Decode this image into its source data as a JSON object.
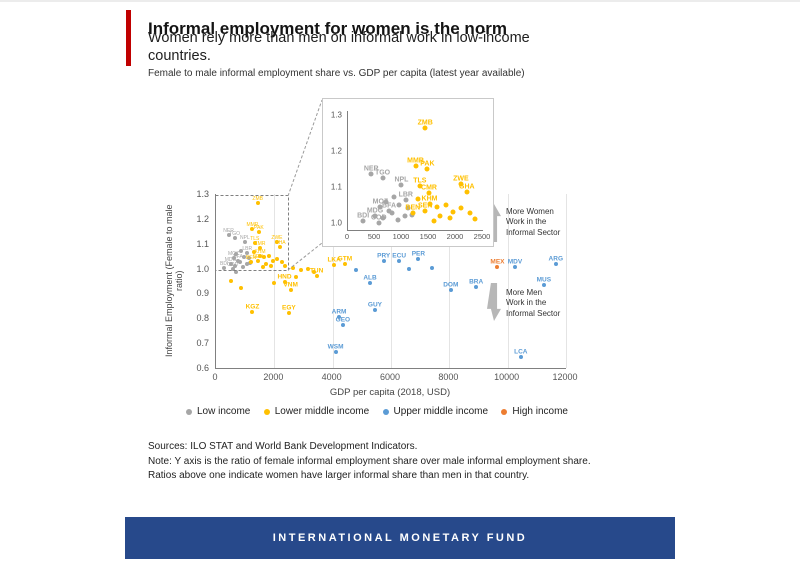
{
  "header": {
    "title": "Informal employment for women is the norm",
    "subtitle": "Women rely more than men on informal work in low-income countries.",
    "caption": "Female to male informal employment share vs. GDP per capita (latest year available)"
  },
  "annotations": {
    "more_women": "More Women\nWork in the\nInformal Sector",
    "more_men": "More Men\nWork in the\nInformal Sector"
  },
  "footer": {
    "sources": "Sources: ILO STAT and World Bank Development Indicators.",
    "note": "Note: Y axis is the ratio of female informal employment share over male informal employment share. Ratios above one indicate women have larger informal share than men in that country.",
    "imf": "INTERNATIONAL MONETARY FUND"
  },
  "colors": {
    "accent_red": "#C00000",
    "imf_navy": "#27498B",
    "low_income": "#A6A6A6",
    "lower_middle_income": "#FFC000",
    "upper_middle_income": "#5B9BD5",
    "high_income": "#ED7D31"
  },
  "chart_data": {
    "type": "scatter",
    "title": "Female to male informal employment share vs. GDP per capita (latest year available)",
    "xlabel": "GDP per capita (2018, USD)",
    "ylabel": "Informal Employment (Female to male ratio)",
    "xlim": [
      0,
      12000
    ],
    "ylim": [
      0.6,
      1.3
    ],
    "x_ticks": [
      0,
      2000,
      4000,
      6000,
      8000,
      10000,
      12000
    ],
    "y_ticks": [
      0.6,
      0.7,
      0.8,
      0.9,
      1.0,
      1.1,
      1.2,
      1.3
    ],
    "grid": "vertical-only",
    "legend_position": "bottom",
    "inset": {
      "description": "zoom of dashed box region",
      "xlim": [
        0,
        2500
      ],
      "ylim": [
        0.98,
        1.31
      ],
      "x_ticks": [
        0,
        500,
        1000,
        1500,
        2000,
        2500
      ],
      "y_ticks": [
        1.0,
        1.1,
        1.2,
        1.3
      ]
    },
    "series": [
      {
        "name": "Low income",
        "color": "#A6A6A6",
        "points": [
          {
            "l": "NER",
            "x": 430,
            "y": 1.135,
            "z": true
          },
          {
            "l": "TGO",
            "x": 640,
            "y": 1.125,
            "z": true
          },
          {
            "l": "NPL",
            "x": 990,
            "y": 1.105,
            "z": true
          },
          {
            "l": "LBR",
            "x": 1070,
            "y": 1.063,
            "z": true
          },
          {
            "l": "MOZ",
            "x": 600,
            "y": 1.043,
            "z": true
          },
          {
            "l": "BFA",
            "x": 760,
            "y": 1.032,
            "z": true
          },
          {
            "l": "MDG",
            "x": 500,
            "y": 1.018,
            "z": true
          },
          {
            "l": "BDI",
            "x": 280,
            "y": 1.004,
            "z": true
          },
          {
            "l": "COD",
            "x": 570,
            "y": 1.0,
            "z": true
          },
          {
            "x": 860,
            "y": 1.072,
            "z": true
          },
          {
            "x": 700,
            "y": 1.058,
            "z": true
          },
          {
            "x": 950,
            "y": 1.048,
            "z": true
          },
          {
            "x": 1120,
            "y": 1.041,
            "z": true
          },
          {
            "x": 820,
            "y": 1.028,
            "z": true
          },
          {
            "x": 1180,
            "y": 1.022,
            "z": true
          },
          {
            "x": 640,
            "y": 1.012,
            "z": true
          },
          {
            "x": 930,
            "y": 1.008,
            "z": true
          },
          {
            "x": 1060,
            "y": 1.018,
            "z": true
          },
          {
            "x": 700,
            "y": 0.985
          }
        ]
      },
      {
        "name": "Lower middle income",
        "color": "#FFC000",
        "points": [
          {
            "l": "ZMB",
            "x": 1430,
            "y": 1.262,
            "z": true
          },
          {
            "l": "MMR",
            "x": 1250,
            "y": 1.158,
            "z": true
          },
          {
            "l": "PAK",
            "x": 1470,
            "y": 1.148,
            "z": true
          },
          {
            "l": "TLS",
            "x": 1330,
            "y": 1.103,
            "z": true
          },
          {
            "l": "ZWE",
            "x": 2090,
            "y": 1.108,
            "z": true
          },
          {
            "l": "CMR",
            "x": 1500,
            "y": 1.082,
            "z": true
          },
          {
            "l": "GHA",
            "x": 2200,
            "y": 1.085,
            "z": true
          },
          {
            "l": "KHM",
            "x": 1510,
            "y": 1.052,
            "z": true
          },
          {
            "l": "SEN",
            "x": 1430,
            "y": 1.032,
            "z": true
          },
          {
            "l": "BEN",
            "x": 1200,
            "y": 1.028,
            "z": true
          },
          {
            "x": 1650,
            "y": 1.045,
            "z": true
          },
          {
            "x": 1820,
            "y": 1.05,
            "z": true
          },
          {
            "x": 1950,
            "y": 1.03,
            "z": true
          },
          {
            "x": 2100,
            "y": 1.04,
            "z": true
          },
          {
            "x": 1700,
            "y": 1.018,
            "z": true
          },
          {
            "x": 1880,
            "y": 1.012,
            "z": true
          },
          {
            "x": 2250,
            "y": 1.028,
            "z": true
          },
          {
            "x": 1600,
            "y": 1.005,
            "z": true
          },
          {
            "x": 2350,
            "y": 1.01,
            "z": true
          },
          {
            "x": 1300,
            "y": 1.065,
            "z": true
          },
          {
            "l": "HND",
            "x": 2350,
            "y": 0.945
          },
          {
            "l": "VNM",
            "x": 2560,
            "y": 0.915
          },
          {
            "l": "KGZ",
            "x": 1250,
            "y": 0.825
          },
          {
            "l": "EGY",
            "x": 2500,
            "y": 0.82
          },
          {
            "l": "TUN",
            "x": 3450,
            "y": 0.972
          },
          {
            "l": "LKA",
            "x": 4050,
            "y": 1.015
          },
          {
            "l": "GTM",
            "x": 4420,
            "y": 1.02
          },
          {
            "x": 2650,
            "y": 1.003
          },
          {
            "x": 2900,
            "y": 0.993
          },
          {
            "x": 3150,
            "y": 1.0
          },
          {
            "x": 3350,
            "y": 0.988
          },
          {
            "x": 2000,
            "y": 0.94
          },
          {
            "x": 500,
            "y": 0.95
          },
          {
            "x": 850,
            "y": 0.92
          },
          {
            "x": 2750,
            "y": 0.965
          }
        ]
      },
      {
        "name": "Upper middle income",
        "color": "#5B9BD5",
        "points": [
          {
            "l": "PRY",
            "x": 5750,
            "y": 1.03
          },
          {
            "l": "ECU",
            "x": 6280,
            "y": 1.03
          },
          {
            "l": "PER",
            "x": 6940,
            "y": 1.038
          },
          {
            "l": "ALB",
            "x": 5280,
            "y": 0.94
          },
          {
            "l": "GUY",
            "x": 5450,
            "y": 0.835
          },
          {
            "l": "ARM",
            "x": 4220,
            "y": 0.805
          },
          {
            "l": "GEO",
            "x": 4350,
            "y": 0.775
          },
          {
            "l": "WSM",
            "x": 4100,
            "y": 0.665
          },
          {
            "l": "DOM",
            "x": 8050,
            "y": 0.915
          },
          {
            "l": "BRA",
            "x": 8920,
            "y": 0.925
          },
          {
            "l": "MDV",
            "x": 10250,
            "y": 1.005
          },
          {
            "l": "ARG",
            "x": 11650,
            "y": 1.02
          },
          {
            "l": "MUS",
            "x": 11240,
            "y": 0.935
          },
          {
            "l": "LCA",
            "x": 10450,
            "y": 0.645
          },
          {
            "x": 6600,
            "y": 1.0
          },
          {
            "x": 7400,
            "y": 1.002
          },
          {
            "x": 4800,
            "y": 0.995
          }
        ]
      },
      {
        "name": "High income",
        "color": "#ED7D31",
        "points": [
          {
            "l": "MEX",
            "x": 9650,
            "y": 1.005
          }
        ]
      }
    ]
  }
}
